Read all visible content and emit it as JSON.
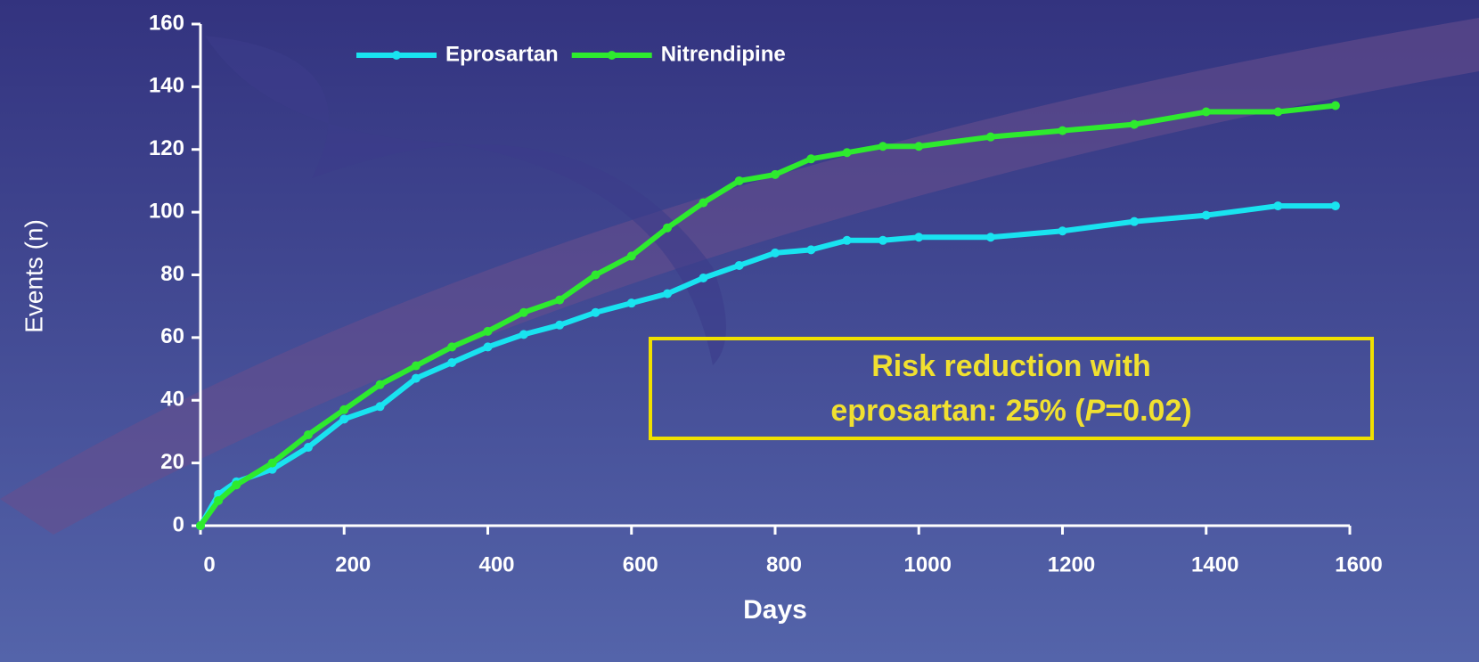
{
  "chart_data": {
    "type": "line",
    "x_label": "Days",
    "y_label": "Events (n)",
    "x": [
      0,
      25,
      50,
      100,
      150,
      200,
      250,
      300,
      350,
      400,
      450,
      500,
      550,
      600,
      650,
      700,
      750,
      800,
      850,
      900,
      950,
      1000,
      1100,
      1200,
      1300,
      1400,
      1500,
      1580
    ],
    "series": [
      {
        "name": "Eprosartan",
        "color": "#19e3f0",
        "values": [
          0,
          10,
          14,
          18,
          25,
          34,
          38,
          47,
          52,
          57,
          61,
          64,
          68,
          71,
          74,
          79,
          83,
          87,
          88,
          91,
          91,
          92,
          92,
          94,
          97,
          99,
          102,
          102
        ]
      },
      {
        "name": "Nitrendipine",
        "color": "#2eea2e",
        "values": [
          0,
          8,
          13,
          20,
          29,
          37,
          45,
          51,
          57,
          62,
          68,
          72,
          80,
          86,
          95,
          103,
          110,
          112,
          117,
          119,
          121,
          121,
          124,
          126,
          128,
          132,
          132,
          134
        ]
      }
    ],
    "xlim": [
      0,
      1600
    ],
    "xticks": [
      0,
      200,
      400,
      600,
      800,
      1000,
      1200,
      1400,
      1600
    ],
    "ylim": [
      0,
      160
    ],
    "yticks": [
      0,
      20,
      40,
      60,
      80,
      100,
      120,
      140,
      160
    ],
    "legend": "top",
    "annotation": [
      "Risk reduction with",
      "eprosartan: 25% (",
      "P",
      "=0.02)"
    ]
  }
}
